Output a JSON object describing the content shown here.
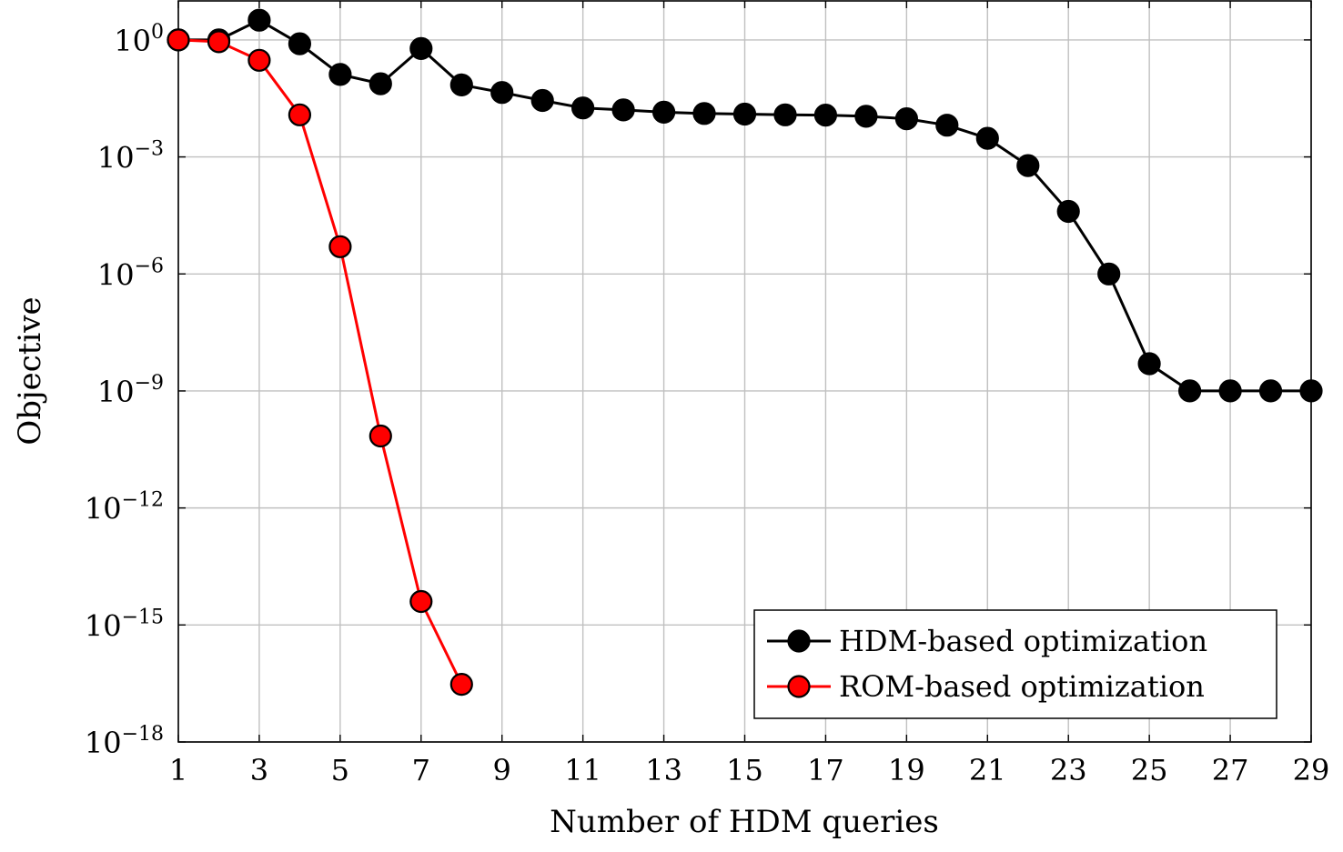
{
  "chart_data": {
    "type": "line",
    "xlabel": "Number of HDM queries",
    "ylabel": "Objective",
    "xlim": [
      1,
      29
    ],
    "ylim_log10": [
      -18,
      1
    ],
    "y_scale": "log",
    "grid": true,
    "legend_position": "bottom-right",
    "x_ticks": [
      1,
      3,
      5,
      7,
      9,
      11,
      13,
      15,
      17,
      19,
      21,
      23,
      25,
      27,
      29
    ],
    "x_tick_labels": [
      "1",
      "3",
      "5",
      "7",
      "9",
      "11",
      "13",
      "15",
      "17",
      "19",
      "21",
      "23",
      "25",
      "27",
      "29"
    ],
    "y_ticks_log10": [
      0,
      -3,
      -6,
      -9,
      -12,
      -15,
      -18
    ],
    "y_tick_base": "10",
    "y_tick_exponents": [
      "0",
      "−3",
      "−6",
      "−9",
      "−12",
      "−15",
      "−18"
    ],
    "series": [
      {
        "name": "HDM-based optimization",
        "color": "#000000",
        "marker_fill": "#000000",
        "x": [
          1,
          2,
          3,
          4,
          5,
          6,
          7,
          8,
          9,
          10,
          11,
          12,
          13,
          14,
          15,
          16,
          17,
          18,
          19,
          20,
          21,
          22,
          23,
          24,
          25,
          26,
          27,
          28,
          29
        ],
        "y": [
          1.0,
          1.0,
          3.2,
          0.8,
          0.13,
          0.075,
          0.6,
          0.07,
          0.045,
          0.028,
          0.018,
          0.016,
          0.014,
          0.013,
          0.0125,
          0.012,
          0.0118,
          0.011,
          0.0095,
          0.0065,
          0.003,
          0.0006,
          4e-05,
          1e-06,
          5e-09,
          1e-09,
          1e-09,
          1e-09,
          1e-09
        ]
      },
      {
        "name": "ROM-based optimization",
        "color": "#ff0000",
        "marker_fill": "#ff0000",
        "x": [
          1,
          2,
          3,
          4,
          5,
          6,
          7,
          8
        ],
        "y": [
          1.0,
          0.9,
          0.3,
          0.012,
          5e-06,
          7e-11,
          4e-15,
          3e-17
        ]
      }
    ]
  }
}
